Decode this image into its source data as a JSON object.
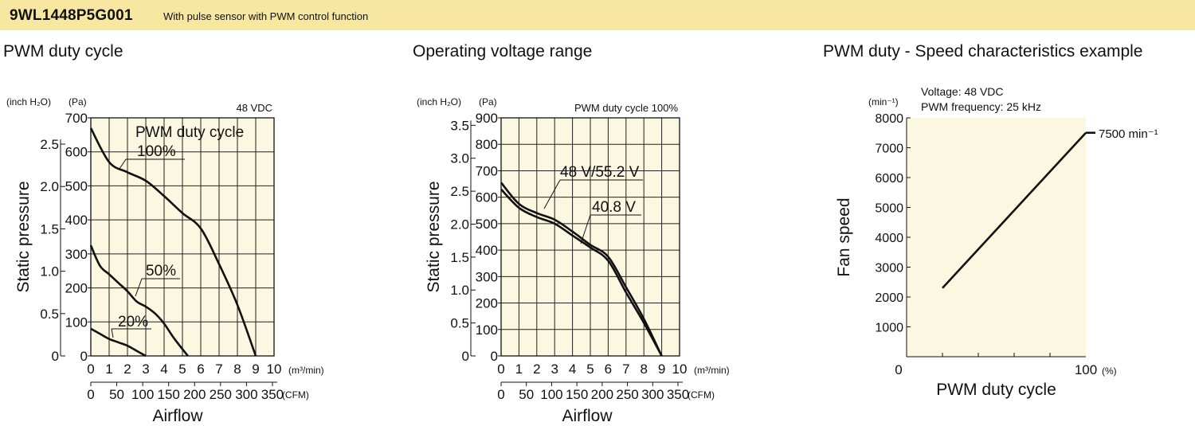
{
  "header": {
    "model": "9WL1448P5G001",
    "description": "With pulse sensor with PWM control function"
  },
  "colors": {
    "banner": "#f8e7a0",
    "plot_bg": "#fbf7e0",
    "curve": "#111111"
  },
  "chart_data": [
    {
      "type": "line",
      "title": "PWM duty cycle",
      "xlabel": "Airflow",
      "ylabel": "Static pressure",
      "note": "48 VDC",
      "legend_title": "PWM duty cycle",
      "x_unit": "(m³/min)",
      "x2_unit": "(CFM)",
      "y_unit_left": "(inch H₂O)",
      "y_unit_right": "(Pa)",
      "xlim": [
        0,
        10
      ],
      "ylim": [
        0,
        700
      ],
      "x_ticks": [
        "0",
        "1",
        "2",
        "3",
        "4",
        "5",
        "6",
        "7",
        "8",
        "9",
        "10"
      ],
      "y_ticks": [
        "0",
        "100",
        "200",
        "300",
        "400",
        "500",
        "600",
        "700"
      ],
      "y2_ticks": [
        "0",
        "0.5",
        "1.0",
        "1.5",
        "2.0",
        "2.5"
      ],
      "x2_ticks": [
        "0",
        "50",
        "100",
        "150",
        "200",
        "250",
        "300",
        "350"
      ],
      "series": [
        {
          "name": "100%",
          "points": [
            [
              0,
              670
            ],
            [
              1,
              570
            ],
            [
              2,
              540
            ],
            [
              3,
              515
            ],
            [
              4,
              470
            ],
            [
              5,
              420
            ],
            [
              6,
              375
            ],
            [
              7,
              270
            ],
            [
              8,
              150
            ],
            [
              9,
              0
            ]
          ]
        },
        {
          "name": "50%",
          "points": [
            [
              0,
              325
            ],
            [
              0.5,
              265
            ],
            [
              1,
              240
            ],
            [
              1.5,
              215
            ],
            [
              2,
              190
            ],
            [
              2.5,
              160
            ],
            [
              3,
              145
            ],
            [
              3.5,
              125
            ],
            [
              4,
              95
            ],
            [
              4.5,
              55
            ],
            [
              5,
              20
            ],
            [
              5.3,
              0
            ]
          ]
        },
        {
          "name": "20%",
          "points": [
            [
              0,
              80
            ],
            [
              0.5,
              65
            ],
            [
              1,
              50
            ],
            [
              1.5,
              40
            ],
            [
              2,
              30
            ],
            [
              2.5,
              15
            ],
            [
              3,
              0
            ]
          ]
        }
      ]
    },
    {
      "type": "line",
      "title": "Operating voltage range",
      "xlabel": "Airflow",
      "ylabel": "Static pressure",
      "note": "PWM duty cycle 100%",
      "x_unit": "(m³/min)",
      "x2_unit": "(CFM)",
      "y_unit_left": "(inch H₂O)",
      "y_unit_right": "(Pa)",
      "xlim": [
        0,
        10
      ],
      "ylim": [
        0,
        900
      ],
      "x_ticks": [
        "0",
        "1",
        "2",
        "3",
        "4",
        "5",
        "6",
        "7",
        "8",
        "9",
        "10"
      ],
      "y_ticks": [
        "0",
        "100",
        "200",
        "300",
        "400",
        "500",
        "600",
        "700",
        "800",
        "900"
      ],
      "y2_ticks": [
        "0",
        "0.5",
        "1.0",
        "1.5",
        "2.0",
        "2.5",
        "3.0",
        "3.5"
      ],
      "x2_ticks": [
        "0",
        "50",
        "100",
        "150",
        "200",
        "250",
        "300",
        "350"
      ],
      "series": [
        {
          "name": "48 V/55.2 V",
          "points": [
            [
              0,
              655
            ],
            [
              1,
              575
            ],
            [
              2,
              540
            ],
            [
              3,
              515
            ],
            [
              4,
              470
            ],
            [
              5,
              420
            ],
            [
              6,
              375
            ],
            [
              7,
              260
            ],
            [
              8,
              140
            ],
            [
              9,
              0
            ]
          ]
        },
        {
          "name": "40.8 V",
          "points": [
            [
              0,
              630
            ],
            [
              1,
              560
            ],
            [
              2,
              525
            ],
            [
              3,
              500
            ],
            [
              4,
              455
            ],
            [
              5,
              410
            ],
            [
              6,
              360
            ],
            [
              7,
              240
            ],
            [
              8,
              125
            ],
            [
              9,
              0
            ]
          ]
        }
      ]
    },
    {
      "type": "line",
      "title": "PWM duty - Speed characteristics example",
      "xlabel": "PWM duty cycle",
      "ylabel": "Fan speed",
      "y_unit": "(min⁻¹)",
      "x_unit": "(%)",
      "annotations": [
        "Voltage: 48 VDC",
        "PWM frequency: 25 kHz",
        "7500 min⁻¹"
      ],
      "xlim": [
        0,
        100
      ],
      "ylim": [
        0,
        8000
      ],
      "x_tick_labels": [
        "0",
        "100"
      ],
      "y_ticks": [
        "1000",
        "2000",
        "3000",
        "4000",
        "5000",
        "6000",
        "7000",
        "8000"
      ],
      "series": [
        {
          "name": "",
          "points": [
            [
              20,
              2300
            ],
            [
              100,
              7500
            ]
          ]
        }
      ]
    }
  ]
}
